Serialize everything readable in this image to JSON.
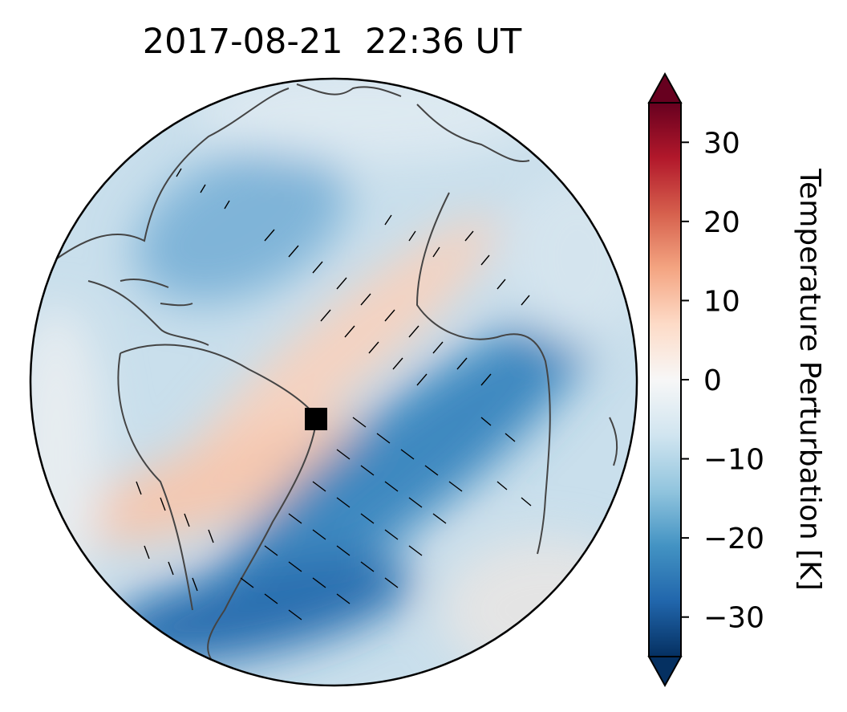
{
  "chart_data": {
    "type": "heatmap",
    "projection": "orthographic globe",
    "title": "2017-08-21  22:36 UT",
    "colorbar": {
      "label": "Temperature Perturbation [K]",
      "colormap": "RdBu_r",
      "range": [
        -35,
        35
      ],
      "ticks": [
        30,
        20,
        10,
        0,
        -10,
        -20,
        -30
      ],
      "tick_labels": [
        "30",
        "20",
        "10",
        "0",
        "−10",
        "−20",
        "−30"
      ],
      "extend": "both"
    },
    "colors": {
      "max": "#67001f",
      "warm": "#d6604d",
      "light_warm": "#f4a582",
      "neutral": "#f7f7f7",
      "light_cool": "#92c5de",
      "cool": "#4393c3",
      "min": "#053061",
      "coastline": "#444444",
      "marker": "#000000"
    },
    "features": [
      {
        "description": "warm band across Brazil and South America",
        "value": 6
      },
      {
        "description": "warm band over equatorial Atlantic toward West Africa",
        "value": 4
      },
      {
        "description": "cold band across South Atlantic",
        "value": -22
      },
      {
        "description": "cold region over southern Argentina",
        "value": -27
      },
      {
        "description": "cool region over North Atlantic",
        "value": -14
      }
    ],
    "marker": {
      "shape": "square",
      "location": "eastern Brazil coast"
    },
    "overlay": "short black wind barb segments across globe"
  }
}
